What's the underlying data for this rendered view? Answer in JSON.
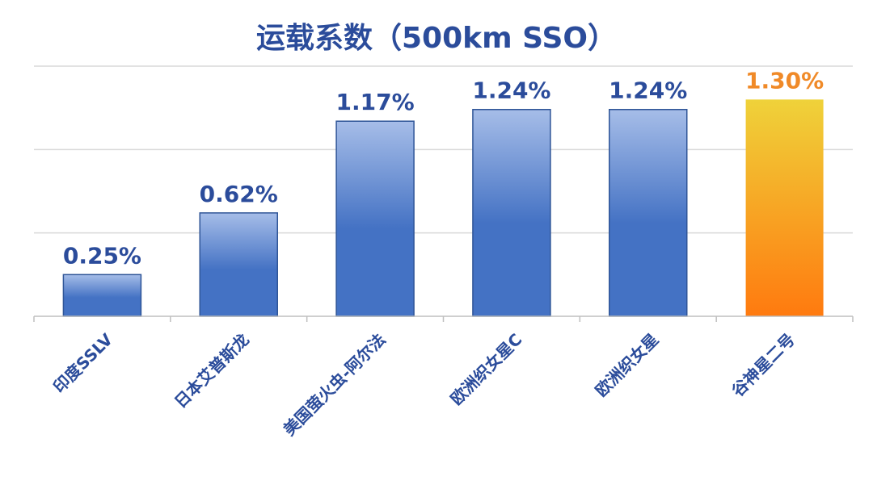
{
  "chart_data": {
    "type": "bar",
    "title": "运载系数（500km SSO）",
    "categories": [
      "印度SSLV",
      "日本艾普斯龙",
      "美国萤火虫-阿尔法",
      "欧洲织女星C",
      "欧洲织女星",
      "谷神星二号"
    ],
    "values": [
      0.25,
      0.62,
      1.17,
      1.24,
      1.24,
      1.3
    ],
    "value_labels": [
      "0.25%",
      "0.62%",
      "1.17%",
      "1.24%",
      "1.24%",
      "1.30%"
    ],
    "unit": "%",
    "ylim": [
      0,
      1.5
    ],
    "grid": true,
    "legend": "none",
    "highlight_index": 5,
    "colors": {
      "bar_top": "#a6bde8",
      "bar_bottom": "#4472C4",
      "bar_stroke": "#2F5597",
      "highlight_top": "#EFD23A",
      "highlight_bottom": "#FF7A0F",
      "label": "#2B4C9B",
      "highlight_label": "#F08A28"
    }
  }
}
